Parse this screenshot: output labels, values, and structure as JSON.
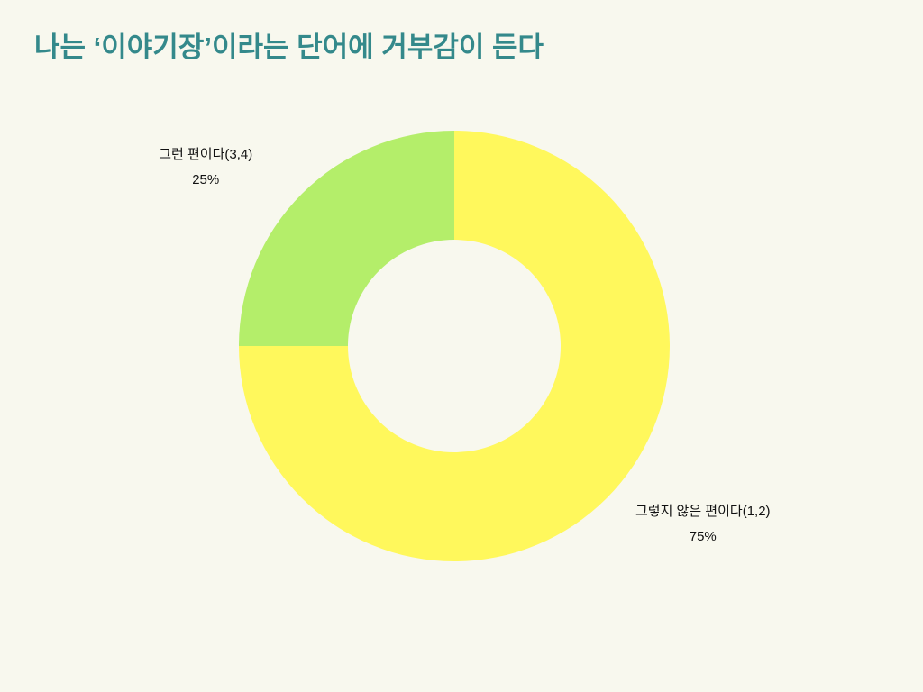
{
  "chart_data": {
    "type": "donut",
    "title": "나는 ‘이야기장’이라는 단어에 거부감이 든다",
    "categories": [
      "그렇지 않은 편이다(1,2)",
      "그런 편이다(3,4)"
    ],
    "values": [
      75,
      25
    ],
    "value_labels": [
      "75%",
      "25%"
    ],
    "colors": [
      "#fff85c",
      "#b4ee6a"
    ]
  }
}
